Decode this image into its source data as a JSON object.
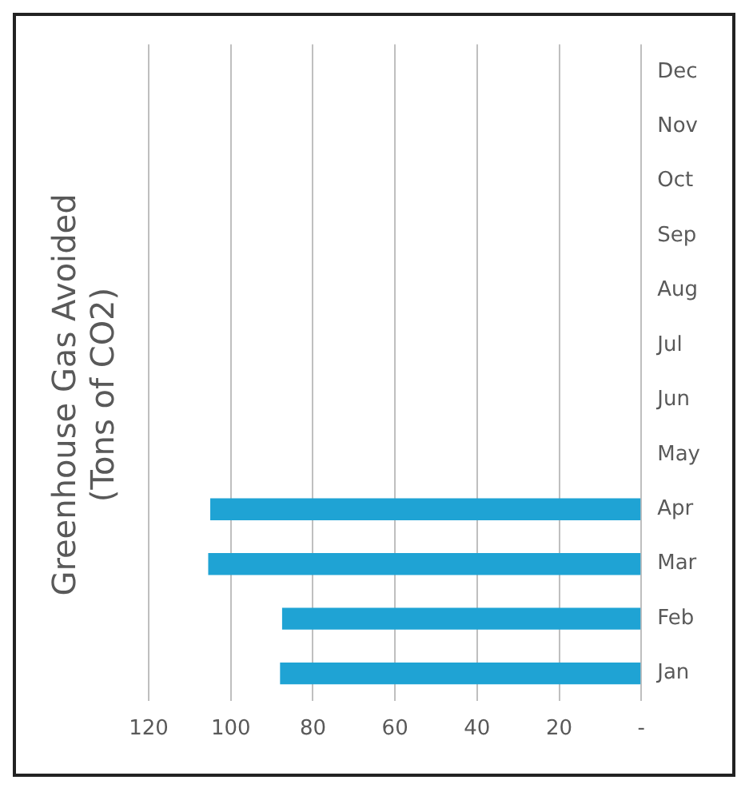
{
  "chart_data": {
    "type": "bar",
    "orientation": "horizontal",
    "title": "Greenhouse Gas Avoided (Tons of CO2)",
    "categories": [
      "Dec",
      "Nov",
      "Oct",
      "Sep",
      "Aug",
      "Jul",
      "Jun",
      "May",
      "Apr",
      "Mar",
      "Feb",
      "Jan"
    ],
    "values": [
      null,
      null,
      null,
      null,
      null,
      null,
      null,
      null,
      105,
      105.5,
      87.5,
      88
    ],
    "color": "#1fa3d4",
    "xlim": [
      120,
      0
    ],
    "xticks": [
      {
        "value": 0,
        "label": "-"
      },
      20,
      40,
      60,
      80,
      100,
      120
    ],
    "grid": "x"
  }
}
